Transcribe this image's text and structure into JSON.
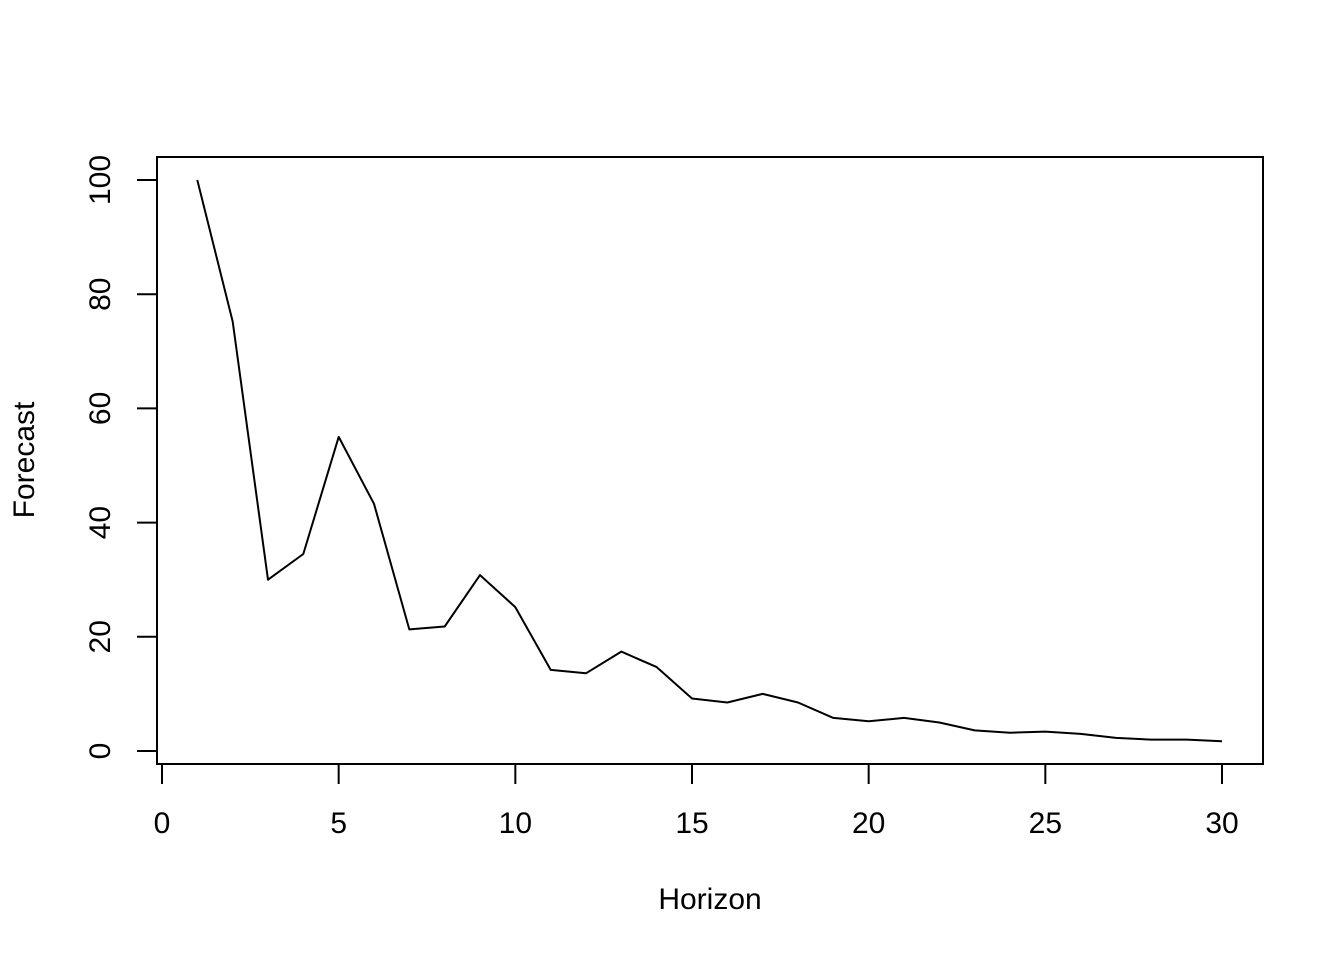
{
  "chart_data": {
    "type": "line",
    "title": "",
    "xlabel": "Horizon",
    "ylabel": "Forecast",
    "xlim": [
      0,
      30
    ],
    "ylim": [
      0,
      100
    ],
    "x_ticks": [
      0,
      5,
      10,
      15,
      20,
      25,
      30
    ],
    "y_ticks": [
      0,
      20,
      40,
      60,
      80,
      100
    ],
    "grid": false,
    "legend": "none",
    "line_color": "#000000",
    "series": [
      {
        "x": [
          1,
          2,
          3,
          4,
          5,
          6,
          7,
          8,
          9,
          10,
          11,
          12,
          13,
          14,
          15,
          16,
          17,
          18,
          19,
          20,
          21,
          22,
          23,
          24,
          25,
          26,
          27,
          28,
          29,
          30
        ],
        "values": [
          100,
          75.2,
          30.0,
          34.5,
          55.0,
          43.3,
          21.3,
          21.8,
          30.8,
          25.2,
          14.2,
          13.6,
          17.4,
          14.7,
          9.2,
          8.5,
          10.0,
          8.5,
          5.8,
          5.2,
          5.8,
          5.0,
          3.6,
          3.2,
          3.4,
          3.0,
          2.3,
          2.0,
          2.0,
          1.7
        ]
      }
    ]
  }
}
